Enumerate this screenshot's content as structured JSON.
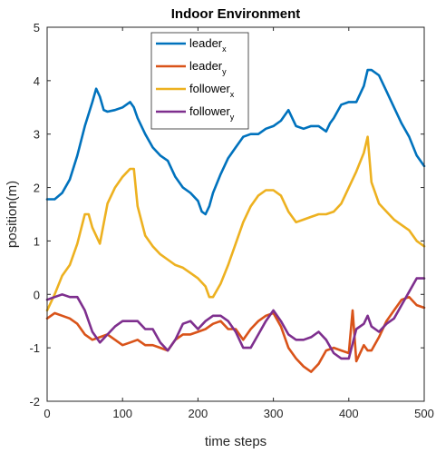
{
  "chart_data": {
    "type": "line",
    "title": "Indoor Environment",
    "xlabel": "time steps",
    "ylabel": "position(m)",
    "xlim": [
      0,
      500
    ],
    "ylim": [
      -2,
      5
    ],
    "xticks": [
      0,
      100,
      200,
      300,
      400,
      500
    ],
    "yticks": [
      -2,
      -1,
      0,
      1,
      2,
      3,
      4,
      5
    ],
    "grid": false,
    "legend_position": "top-center",
    "series": [
      {
        "name": "leader",
        "subscript": "x",
        "color": "#0072BD",
        "x": [
          0,
          10,
          20,
          30,
          40,
          50,
          60,
          65,
          70,
          75,
          80,
          90,
          100,
          110,
          115,
          120,
          130,
          140,
          150,
          160,
          170,
          180,
          190,
          200,
          205,
          210,
          215,
          220,
          230,
          240,
          250,
          260,
          270,
          280,
          290,
          300,
          310,
          320,
          330,
          340,
          350,
          360,
          370,
          375,
          380,
          390,
          400,
          410,
          420,
          425,
          430,
          440,
          450,
          460,
          470,
          480,
          490,
          500
        ],
        "y": [
          1.78,
          1.78,
          1.9,
          2.15,
          2.6,
          3.15,
          3.6,
          3.85,
          3.7,
          3.45,
          3.42,
          3.45,
          3.5,
          3.6,
          3.5,
          3.3,
          3.0,
          2.75,
          2.6,
          2.5,
          2.2,
          2.0,
          1.9,
          1.75,
          1.55,
          1.5,
          1.65,
          1.9,
          2.25,
          2.55,
          2.75,
          2.95,
          3.0,
          3.0,
          3.1,
          3.15,
          3.25,
          3.45,
          3.15,
          3.1,
          3.15,
          3.15,
          3.05,
          3.2,
          3.3,
          3.55,
          3.6,
          3.6,
          3.9,
          4.2,
          4.2,
          4.1,
          3.8,
          3.5,
          3.2,
          2.95,
          2.6,
          2.4
        ]
      },
      {
        "name": "leader",
        "subscript": "y",
        "color": "#D95319",
        "x": [
          0,
          10,
          20,
          30,
          40,
          50,
          60,
          70,
          80,
          90,
          100,
          110,
          120,
          130,
          140,
          150,
          160,
          170,
          180,
          190,
          200,
          210,
          220,
          230,
          240,
          250,
          260,
          270,
          280,
          290,
          300,
          310,
          320,
          330,
          340,
          350,
          360,
          370,
          380,
          390,
          400,
          405,
          410,
          420,
          425,
          430,
          440,
          450,
          460,
          470,
          480,
          490,
          500
        ],
        "y": [
          -0.45,
          -0.35,
          -0.4,
          -0.45,
          -0.55,
          -0.75,
          -0.85,
          -0.8,
          -0.75,
          -0.85,
          -0.95,
          -0.9,
          -0.85,
          -0.95,
          -0.95,
          -1.0,
          -1.05,
          -0.85,
          -0.75,
          -0.75,
          -0.7,
          -0.65,
          -0.55,
          -0.5,
          -0.65,
          -0.65,
          -0.85,
          -0.65,
          -0.5,
          -0.4,
          -0.35,
          -0.6,
          -1.0,
          -1.2,
          -1.35,
          -1.45,
          -1.3,
          -1.05,
          -1.0,
          -1.05,
          -1.1,
          -0.3,
          -1.25,
          -0.95,
          -1.05,
          -1.05,
          -0.8,
          -0.5,
          -0.3,
          -0.1,
          -0.05,
          -0.2,
          -0.25
        ]
      },
      {
        "name": "follower",
        "subscript": "x",
        "color": "#EDB120",
        "x": [
          0,
          10,
          20,
          30,
          40,
          50,
          55,
          60,
          70,
          80,
          90,
          100,
          110,
          115,
          120,
          130,
          140,
          150,
          160,
          170,
          180,
          190,
          200,
          210,
          215,
          220,
          230,
          240,
          250,
          260,
          270,
          280,
          290,
          300,
          310,
          320,
          330,
          340,
          350,
          360,
          370,
          380,
          390,
          400,
          410,
          420,
          425,
          430,
          440,
          450,
          460,
          470,
          480,
          490,
          500
        ],
        "y": [
          -0.3,
          0.0,
          0.35,
          0.55,
          0.95,
          1.5,
          1.5,
          1.25,
          0.95,
          1.7,
          2.0,
          2.2,
          2.35,
          2.35,
          1.65,
          1.1,
          0.9,
          0.75,
          0.65,
          0.55,
          0.5,
          0.4,
          0.3,
          0.15,
          -0.05,
          -0.05,
          0.2,
          0.55,
          0.95,
          1.35,
          1.65,
          1.85,
          1.95,
          1.95,
          1.85,
          1.55,
          1.35,
          1.4,
          1.45,
          1.5,
          1.5,
          1.55,
          1.7,
          2.0,
          2.3,
          2.65,
          2.95,
          2.1,
          1.7,
          1.55,
          1.4,
          1.3,
          1.2,
          1.0,
          0.9
        ]
      },
      {
        "name": "follower",
        "subscript": "y",
        "color": "#7E2F8E",
        "x": [
          0,
          10,
          20,
          30,
          40,
          50,
          60,
          70,
          80,
          90,
          100,
          110,
          120,
          130,
          140,
          150,
          160,
          170,
          180,
          190,
          200,
          210,
          220,
          230,
          240,
          250,
          260,
          270,
          280,
          290,
          300,
          310,
          320,
          330,
          340,
          350,
          360,
          370,
          380,
          390,
          400,
          410,
          420,
          425,
          430,
          440,
          450,
          460,
          470,
          480,
          490,
          500
        ],
        "y": [
          -0.1,
          -0.05,
          0.0,
          -0.05,
          -0.05,
          -0.3,
          -0.7,
          -0.9,
          -0.75,
          -0.6,
          -0.5,
          -0.5,
          -0.5,
          -0.65,
          -0.65,
          -0.9,
          -1.05,
          -0.85,
          -0.55,
          -0.5,
          -0.65,
          -0.5,
          -0.4,
          -0.4,
          -0.5,
          -0.7,
          -1.0,
          -1.0,
          -0.75,
          -0.5,
          -0.3,
          -0.5,
          -0.75,
          -0.85,
          -0.85,
          -0.8,
          -0.7,
          -0.85,
          -1.1,
          -1.2,
          -1.2,
          -0.65,
          -0.55,
          -0.4,
          -0.6,
          -0.7,
          -0.55,
          -0.45,
          -0.2,
          0.05,
          0.3,
          0.3
        ]
      }
    ]
  }
}
